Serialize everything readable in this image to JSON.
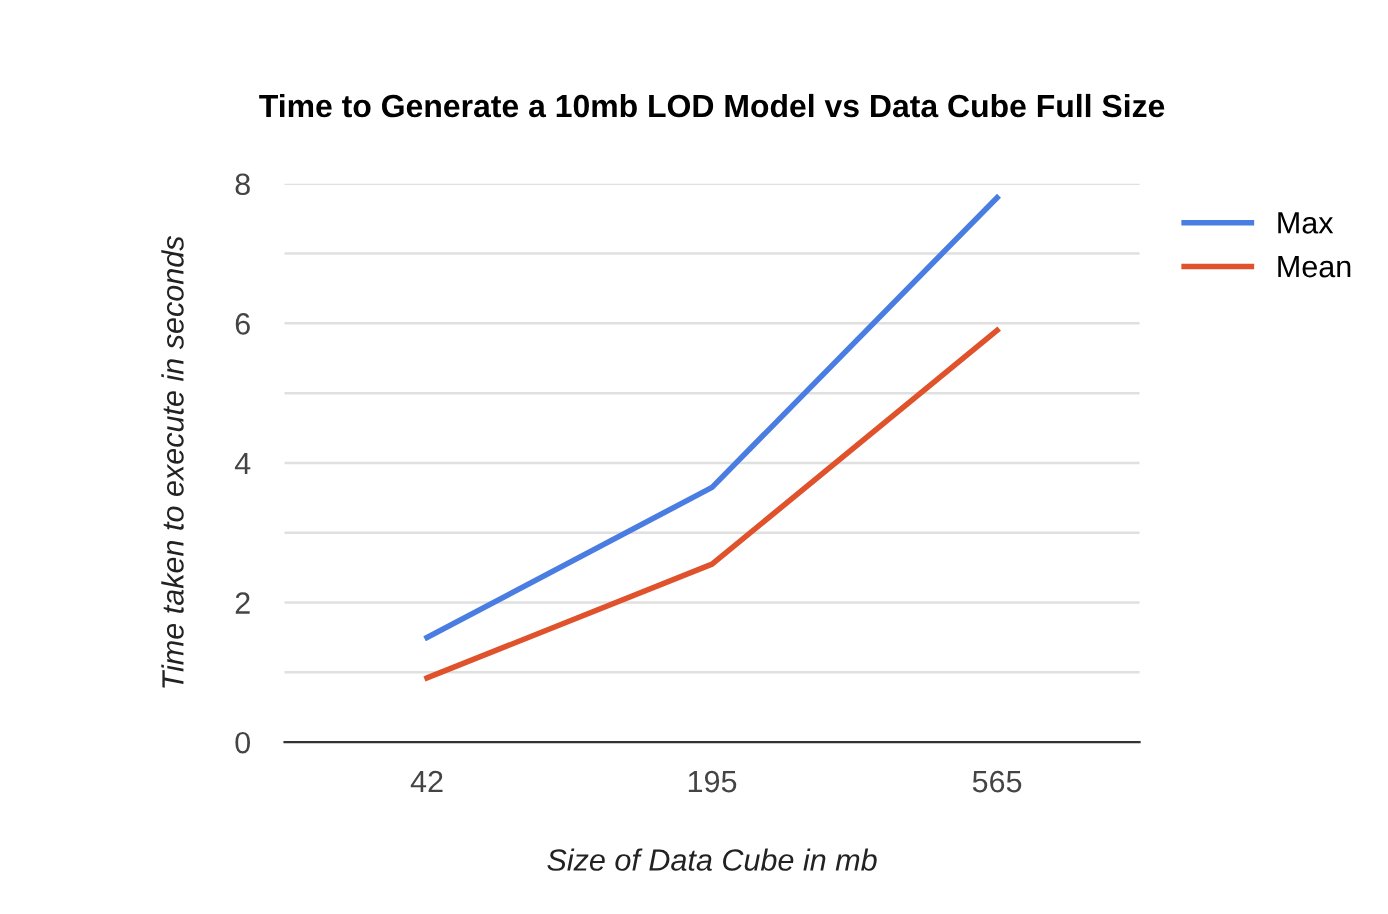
{
  "chart_data": {
    "type": "line",
    "title": "Time to Generate a 10mb LOD Model vs Data Cube Full Size",
    "xlabel": "Size of Data Cube in mb",
    "ylabel": "Time taken to execute in seconds",
    "categories": [
      "42",
      "195",
      "565"
    ],
    "series": [
      {
        "name": "Max",
        "color": "#4a7de2",
        "values": [
          1.5,
          3.65,
          7.8
        ]
      },
      {
        "name": "Mean",
        "color": "#e0522c",
        "values": [
          0.92,
          2.55,
          5.9
        ]
      }
    ],
    "ylim": [
      0,
      8
    ],
    "yticks": [
      0,
      {
        "value": 1,
        "label": null
      },
      2,
      {
        "value": 3,
        "label": null
      },
      4,
      {
        "value": 5,
        "label": null
      },
      6,
      {
        "value": 7,
        "label": null
      },
      8
    ],
    "grid": "y",
    "legend": "right",
    "marker": "none",
    "line_style": "solid"
  }
}
